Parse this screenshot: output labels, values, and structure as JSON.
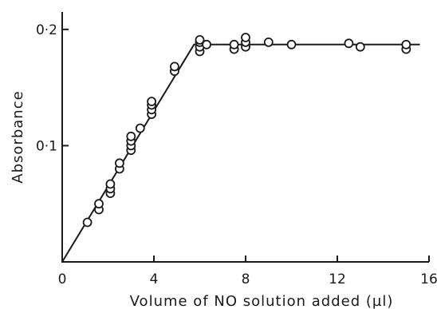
{
  "chart_data": {
    "type": "scatter",
    "title": "",
    "xlabel": "Volume of NO solution added (µl)",
    "ylabel": "Absorbance",
    "xlim": [
      0,
      16
    ],
    "ylim": [
      0,
      0.215
    ],
    "x_ticks": [
      0,
      4,
      8,
      12,
      16
    ],
    "x_tick_labels": [
      "0",
      "4",
      "8",
      "12",
      "16"
    ],
    "y_ticks": [
      0.1,
      0.2
    ],
    "y_tick_labels": [
      "0·1",
      "0·2"
    ],
    "grid": false,
    "legend": "none",
    "fit_line": {
      "x": [
        0,
        5.75,
        15.6
      ],
      "y": [
        0,
        0.187,
        0.187
      ]
    },
    "series": [
      {
        "points": [
          {
            "x": 1.1,
            "y": 0.034
          },
          {
            "x": 1.6,
            "y": 0.045
          },
          {
            "x": 1.6,
            "y": 0.05
          },
          {
            "x": 2.1,
            "y": 0.059
          },
          {
            "x": 2.1,
            "y": 0.063
          },
          {
            "x": 2.1,
            "y": 0.067
          },
          {
            "x": 2.5,
            "y": 0.08
          },
          {
            "x": 2.5,
            "y": 0.085
          },
          {
            "x": 3.0,
            "y": 0.096
          },
          {
            "x": 3.0,
            "y": 0.1
          },
          {
            "x": 3.0,
            "y": 0.104
          },
          {
            "x": 3.0,
            "y": 0.108
          },
          {
            "x": 3.4,
            "y": 0.115
          },
          {
            "x": 3.9,
            "y": 0.127
          },
          {
            "x": 3.9,
            "y": 0.131
          },
          {
            "x": 3.9,
            "y": 0.135
          },
          {
            "x": 3.9,
            "y": 0.138
          },
          {
            "x": 4.9,
            "y": 0.164
          },
          {
            "x": 4.9,
            "y": 0.168
          },
          {
            "x": 6.0,
            "y": 0.181
          },
          {
            "x": 6.0,
            "y": 0.185
          },
          {
            "x": 6.0,
            "y": 0.189
          },
          {
            "x": 6.0,
            "y": 0.191
          },
          {
            "x": 6.3,
            "y": 0.187
          },
          {
            "x": 7.5,
            "y": 0.183
          },
          {
            "x": 7.5,
            "y": 0.187
          },
          {
            "x": 8.0,
            "y": 0.185
          },
          {
            "x": 8.0,
            "y": 0.189
          },
          {
            "x": 8.0,
            "y": 0.193
          },
          {
            "x": 9.0,
            "y": 0.189
          },
          {
            "x": 10.0,
            "y": 0.187
          },
          {
            "x": 12.5,
            "y": 0.188
          },
          {
            "x": 13.0,
            "y": 0.185
          },
          {
            "x": 15.0,
            "y": 0.183
          },
          {
            "x": 15.0,
            "y": 0.187
          }
        ]
      }
    ]
  }
}
